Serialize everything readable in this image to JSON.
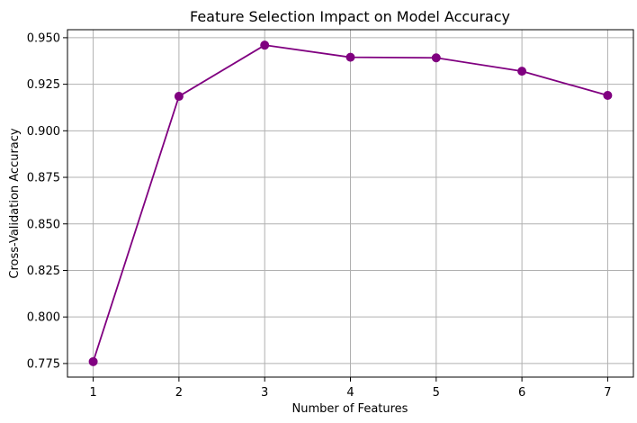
{
  "chart_data": {
    "type": "line",
    "title": "Feature Selection Impact on Model Accuracy",
    "xlabel": "Number of Features",
    "ylabel": "Cross-Validation Accuracy",
    "x": [
      1,
      2,
      3,
      4,
      5,
      6,
      7
    ],
    "series": [
      {
        "values": [
          0.776,
          0.9185,
          0.946,
          0.9395,
          0.9392,
          0.932,
          0.919
        ],
        "color": "#800080",
        "marker": "circle"
      }
    ],
    "xlim": [
      0.7,
      7.3
    ],
    "ylim": [
      0.7677,
      0.9543
    ],
    "xticks": [
      1,
      2,
      3,
      4,
      5,
      6,
      7
    ],
    "yticks": [
      0.775,
      0.8,
      0.825,
      0.85,
      0.875,
      0.9,
      0.925,
      0.95
    ],
    "ytick_labels": [
      "0.775",
      "0.800",
      "0.825",
      "0.850",
      "0.875",
      "0.900",
      "0.925",
      "0.950"
    ],
    "grid": true,
    "grid_color": "#b0b0b0",
    "line_color": "#800080"
  }
}
